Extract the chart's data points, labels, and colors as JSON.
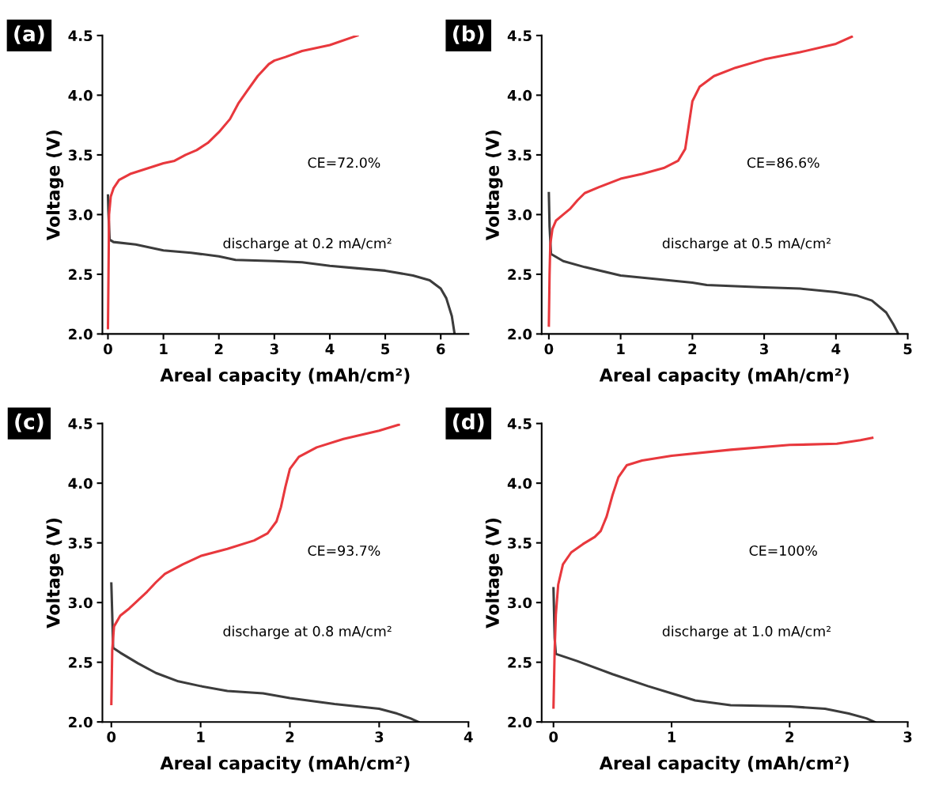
{
  "chart_data": [
    {
      "type": "line",
      "title": "(a)",
      "xlabel": "Areal capacity (mAh/cm²)",
      "ylabel": "Voltage (V)",
      "xlim": [
        -0.1,
        6.5
      ],
      "xticks": [
        0,
        1,
        2,
        3,
        4,
        5,
        6
      ],
      "ylim": [
        2.0,
        4.5
      ],
      "yticks": [
        {
          "value": 2,
          "label": "2.0"
        },
        {
          "value": 2.5,
          "label": "2.5"
        },
        {
          "value": 3,
          "label": "3.0"
        },
        {
          "value": 3.5,
          "label": "3.5"
        },
        {
          "value": 4,
          "label": "4.0"
        },
        {
          "value": 4.5,
          "label": "4.5"
        }
      ],
      "grid": false,
      "annotations": [
        "CE=72.0%",
        "discharge at 0.2 mA/cm²"
      ],
      "series": [
        {
          "color": "#3c3c3c",
          "x": [
            0,
            0.01,
            0.03,
            0.1,
            0.5,
            1.0,
            1.5,
            2.0,
            2.3,
            3.0,
            3.5,
            4.0,
            4.5,
            5.0,
            5.5,
            5.8,
            6.0,
            6.1,
            6.2,
            6.25
          ],
          "values": [
            3.16,
            3.0,
            2.79,
            2.77,
            2.75,
            2.7,
            2.68,
            2.65,
            2.62,
            2.61,
            2.6,
            2.57,
            2.55,
            2.53,
            2.49,
            2.45,
            2.38,
            2.3,
            2.15,
            2.0
          ]
        },
        {
          "color": "#e8383d",
          "x": [
            0,
            0.02,
            0.05,
            0.1,
            0.2,
            0.4,
            0.6,
            0.8,
            1.0,
            1.2,
            1.4,
            1.6,
            1.8,
            2.0,
            2.2,
            2.35,
            2.5,
            2.7,
            2.9,
            3.0,
            3.2,
            3.5,
            4.0,
            4.5
          ],
          "values": [
            2.05,
            3.0,
            3.15,
            3.22,
            3.29,
            3.34,
            3.37,
            3.4,
            3.43,
            3.45,
            3.5,
            3.54,
            3.6,
            3.69,
            3.8,
            3.93,
            4.03,
            4.16,
            4.26,
            4.29,
            4.32,
            4.37,
            4.42,
            4.5
          ]
        }
      ]
    },
    {
      "type": "line",
      "title": "(b)",
      "xlabel": "Areal capacity (mAh/cm²)",
      "ylabel": "Voltage (V)",
      "xlim": [
        -0.1,
        5
      ],
      "xticks": [
        0,
        1,
        2,
        3,
        4,
        5
      ],
      "ylim": [
        2.0,
        4.5
      ],
      "yticks": [
        {
          "value": 2,
          "label": "2.0"
        },
        {
          "value": 2.5,
          "label": "2.5"
        },
        {
          "value": 3,
          "label": "3.0"
        },
        {
          "value": 3.5,
          "label": "3.5"
        },
        {
          "value": 4,
          "label": "4.0"
        },
        {
          "value": 4.5,
          "label": "4.5"
        }
      ],
      "grid": false,
      "annotations": [
        "CE=86.6%",
        "discharge at 0.5 mA/cm²"
      ],
      "series": [
        {
          "color": "#3c3c3c",
          "x": [
            0,
            0.01,
            0.03,
            0.2,
            0.5,
            1.0,
            1.5,
            2.0,
            2.2,
            3.0,
            3.5,
            4.0,
            4.3,
            4.5,
            4.7,
            4.8,
            4.87
          ],
          "values": [
            3.18,
            2.9,
            2.67,
            2.61,
            2.56,
            2.49,
            2.46,
            2.43,
            2.41,
            2.39,
            2.38,
            2.35,
            2.32,
            2.28,
            2.18,
            2.08,
            2.0
          ]
        },
        {
          "color": "#e8383d",
          "x": [
            0,
            0.01,
            0.02,
            0.05,
            0.1,
            0.2,
            0.3,
            0.4,
            0.5,
            0.7,
            1.0,
            1.3,
            1.6,
            1.8,
            1.9,
            1.95,
            2.0,
            2.1,
            2.3,
            2.6,
            3.0,
            3.5,
            4.0,
            4.22
          ],
          "values": [
            2.07,
            2.5,
            2.75,
            2.88,
            2.95,
            3.0,
            3.05,
            3.12,
            3.18,
            3.23,
            3.3,
            3.34,
            3.39,
            3.45,
            3.55,
            3.75,
            3.95,
            4.07,
            4.16,
            4.23,
            4.3,
            4.36,
            4.43,
            4.49
          ]
        }
      ]
    },
    {
      "type": "line",
      "title": "(c)",
      "xlabel": "Areal capacity (mAh/cm²)",
      "ylabel": "Voltage (V)",
      "xlim": [
        -0.1,
        4
      ],
      "xticks": [
        0,
        1,
        2,
        3,
        4
      ],
      "ylim": [
        2.0,
        4.5
      ],
      "yticks": [
        {
          "value": 2,
          "label": "2.0"
        },
        {
          "value": 2.5,
          "label": "2.5"
        },
        {
          "value": 3,
          "label": "3.0"
        },
        {
          "value": 3.5,
          "label": "3.5"
        },
        {
          "value": 4,
          "label": "4.0"
        },
        {
          "value": 4.5,
          "label": "4.5"
        }
      ],
      "grid": false,
      "annotations": [
        "CE=93.7%",
        "discharge at 0.8 mA/cm²"
      ],
      "series": [
        {
          "color": "#3c3c3c",
          "x": [
            0,
            0.01,
            0.02,
            0.1,
            0.3,
            0.5,
            0.75,
            1.0,
            1.3,
            1.7,
            2.0,
            2.5,
            3.0,
            3.2,
            3.35,
            3.44
          ],
          "values": [
            3.16,
            2.9,
            2.62,
            2.58,
            2.49,
            2.41,
            2.34,
            2.3,
            2.26,
            2.24,
            2.2,
            2.15,
            2.11,
            2.07,
            2.03,
            2.0
          ]
        },
        {
          "color": "#e8383d",
          "x": [
            0,
            0.01,
            0.03,
            0.1,
            0.2,
            0.3,
            0.4,
            0.5,
            0.6,
            0.8,
            1.0,
            1.3,
            1.6,
            1.75,
            1.85,
            1.9,
            1.95,
            2.0,
            2.1,
            2.3,
            2.6,
            3.0,
            3.22
          ],
          "values": [
            2.15,
            2.6,
            2.8,
            2.89,
            2.95,
            3.02,
            3.09,
            3.17,
            3.24,
            3.32,
            3.39,
            3.45,
            3.52,
            3.58,
            3.68,
            3.8,
            3.97,
            4.12,
            4.22,
            4.3,
            4.37,
            4.44,
            4.49
          ]
        }
      ]
    },
    {
      "type": "line",
      "title": "(d)",
      "xlabel": "Areal capacity (mAh/cm²)",
      "ylabel": "Voltage (V)",
      "xlim": [
        -0.1,
        3
      ],
      "xticks": [
        0,
        1,
        2,
        3
      ],
      "ylim": [
        2.0,
        4.5
      ],
      "yticks": [
        {
          "value": 2,
          "label": "2.0"
        },
        {
          "value": 2.5,
          "label": "2.5"
        },
        {
          "value": 3,
          "label": "3.0"
        },
        {
          "value": 3.5,
          "label": "3.5"
        },
        {
          "value": 4,
          "label": "4.0"
        },
        {
          "value": 4.5,
          "label": "4.5"
        }
      ],
      "grid": false,
      "annotations": [
        "CE=100%",
        "discharge at 1.0 mA/cm²"
      ],
      "series": [
        {
          "color": "#3c3c3c",
          "x": [
            0,
            0.01,
            0.02,
            0.2,
            0.5,
            0.8,
            1.0,
            1.2,
            1.5,
            2.0,
            2.3,
            2.5,
            2.65,
            2.72
          ],
          "values": [
            3.12,
            2.7,
            2.57,
            2.51,
            2.4,
            2.3,
            2.24,
            2.18,
            2.14,
            2.13,
            2.11,
            2.07,
            2.03,
            2.0
          ]
        },
        {
          "color": "#e8383d",
          "x": [
            0,
            0.01,
            0.02,
            0.04,
            0.08,
            0.15,
            0.25,
            0.35,
            0.4,
            0.45,
            0.5,
            0.55,
            0.62,
            0.75,
            1.0,
            1.5,
            2.0,
            2.4,
            2.6,
            2.7
          ],
          "values": [
            2.12,
            2.6,
            2.9,
            3.15,
            3.32,
            3.42,
            3.49,
            3.55,
            3.6,
            3.72,
            3.9,
            4.05,
            4.15,
            4.19,
            4.23,
            4.28,
            4.32,
            4.33,
            4.36,
            4.38
          ]
        }
      ]
    }
  ]
}
